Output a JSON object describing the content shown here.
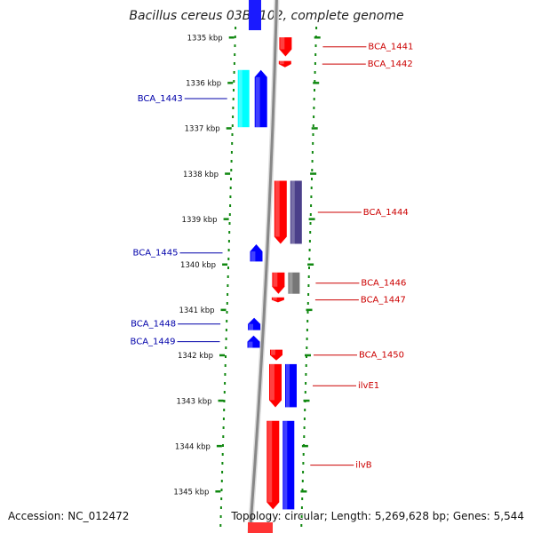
{
  "title": "Bacillus cereus 03BB102, complete genome",
  "footer": {
    "accession": "Accession: NC_012472",
    "summary": "Topology: circular; Length: 5,269,628 bp; Genes: 5,544"
  },
  "ruler": {
    "ticks": [
      {
        "label": "1335 kbp",
        "kbp": 1335
      },
      {
        "label": "1336 kbp",
        "kbp": 1336
      },
      {
        "label": "1337 kbp",
        "kbp": 1337
      },
      {
        "label": "1338 kbp",
        "kbp": 1338
      },
      {
        "label": "1339 kbp",
        "kbp": 1339
      },
      {
        "label": "1340 kbp",
        "kbp": 1340
      },
      {
        "label": "1341 kbp",
        "kbp": 1341
      },
      {
        "label": "1342 kbp",
        "kbp": 1342
      },
      {
        "label": "1343 kbp",
        "kbp": 1343
      },
      {
        "label": "1344 kbp",
        "kbp": 1344
      },
      {
        "label": "1345 kbp",
        "kbp": 1345
      }
    ]
  },
  "genes": [
    {
      "label": "BCA_1441",
      "strand": "+",
      "start_kbp": 1335.0,
      "end_kbp": 1335.42,
      "color": "#ff0000"
    },
    {
      "label": "BCA_1442",
      "strand": "+",
      "start_kbp": 1335.52,
      "end_kbp": 1335.66,
      "color": "#ff0000"
    },
    {
      "label": "BCA_1443",
      "strand": "-",
      "start_kbp": 1335.72,
      "end_kbp": 1336.98,
      "color": "#0000ff"
    },
    {
      "label": "BCA_1444",
      "strand": "+",
      "start_kbp": 1338.16,
      "end_kbp": 1339.55,
      "color": "#ff0000"
    },
    {
      "label": "BCA_1445",
      "strand": "-",
      "start_kbp": 1339.56,
      "end_kbp": 1339.94,
      "color": "#0000ff"
    },
    {
      "label": "BCA_1446",
      "strand": "+",
      "start_kbp": 1340.18,
      "end_kbp": 1340.65,
      "color": "#ff0000"
    },
    {
      "label": "BCA_1447",
      "strand": "+",
      "start_kbp": 1340.73,
      "end_kbp": 1340.84,
      "color": "#ff0000"
    },
    {
      "label": "BCA_1448",
      "strand": "-",
      "start_kbp": 1341.18,
      "end_kbp": 1341.45,
      "color": "#0000ff"
    },
    {
      "label": "BCA_1449",
      "strand": "-",
      "start_kbp": 1341.57,
      "end_kbp": 1341.84,
      "color": "#0000ff"
    },
    {
      "label": "BCA_1450",
      "strand": "+",
      "start_kbp": 1341.88,
      "end_kbp": 1342.12,
      "color": "#ff0000"
    },
    {
      "label": "ilvE1",
      "strand": "+",
      "start_kbp": 1342.2,
      "end_kbp": 1343.15,
      "color": "#ff0000"
    },
    {
      "label": "ilvB",
      "strand": "+",
      "start_kbp": 1343.45,
      "end_kbp": 1345.4,
      "color": "#ff0000"
    }
  ],
  "features": [
    {
      "kind": "cyan",
      "start_kbp": 1335.72,
      "end_kbp": 1336.98,
      "color": "#00ffff"
    },
    {
      "kind": "purple",
      "start_kbp": 1338.16,
      "end_kbp": 1339.55,
      "color": "#4b3f8a"
    },
    {
      "kind": "gray",
      "start_kbp": 1340.18,
      "end_kbp": 1340.65,
      "color": "#777777"
    },
    {
      "kind": "blue",
      "start_kbp": 1342.2,
      "end_kbp": 1343.15,
      "color": "#0000ff"
    },
    {
      "kind": "blue",
      "start_kbp": 1343.45,
      "end_kbp": 1345.4,
      "color": "#0000ff"
    }
  ],
  "colors": {
    "forward": "#ff0000",
    "reverse": "#0000ff",
    "forward_label": "#cc0000",
    "reverse_label": "#0000aa",
    "backbone": "#888888",
    "ticks": "#118811"
  }
}
